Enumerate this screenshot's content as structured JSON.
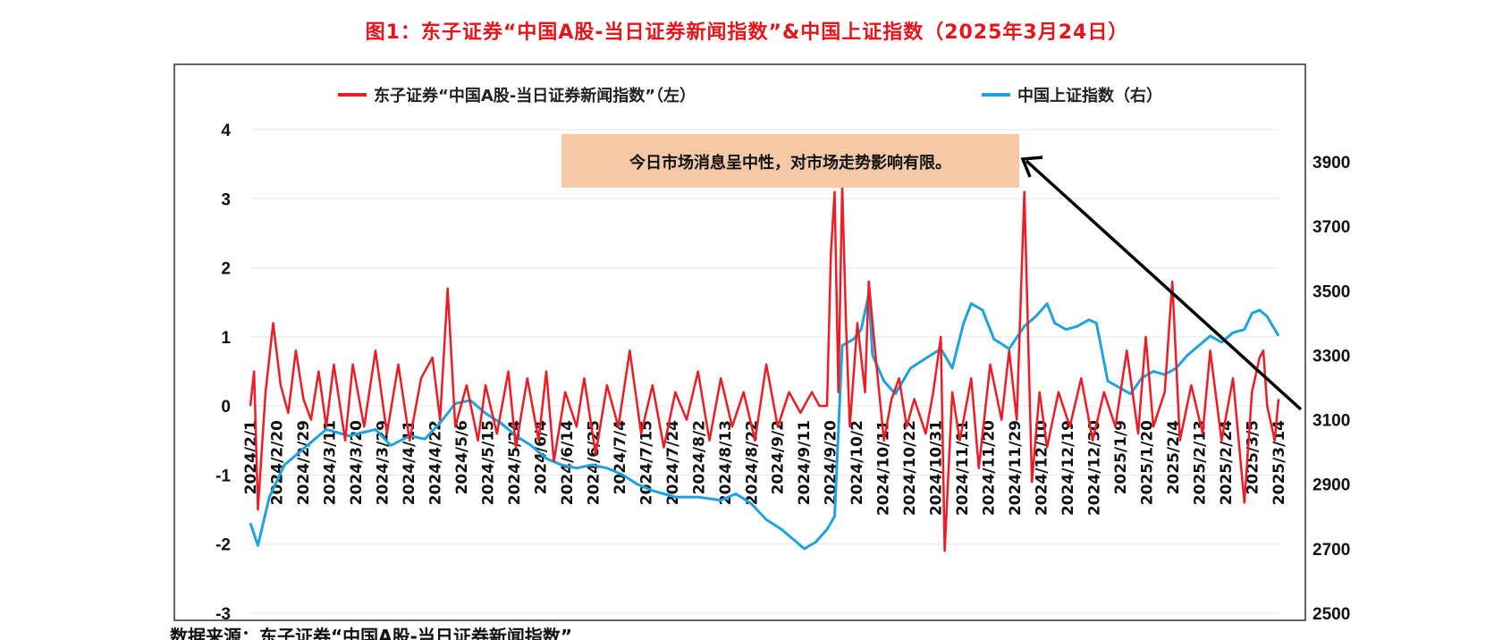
{
  "title": "图1：东子证券“中国A股-当日证券新闻指数”&中国上证指数（2025年3月24日）",
  "footer_text": "数据来源：东子证券“中国A股-当日证券新闻指数”",
  "colors": {
    "news": "#ee1c25",
    "sse": "#1fa3e0",
    "title": "#e8141c",
    "annotation_bg": "#f6c9a6"
  },
  "chart_data": {
    "type": "line",
    "legend": [
      "东子证券“中国A股-当日证券新闻指数”（左）",
      "中国上证指数（右）"
    ],
    "annotation": "今日市场消息呈中性，对市场走势影响有限。",
    "y_left": {
      "min": -3,
      "max": 4,
      "ticks": [
        -3,
        -2,
        -1,
        0,
        1,
        2,
        3,
        4
      ]
    },
    "y_right": {
      "min": 2500,
      "max": 4000,
      "ticks": [
        2500,
        2700,
        2900,
        3100,
        3300,
        3500,
        3700,
        3900
      ]
    },
    "x_ticks": [
      "2024/2/1",
      "2024/2/20",
      "2024/2/29",
      "2024/3/11",
      "2024/3/20",
      "2024/3/29",
      "2024/4/11",
      "2024/4/22",
      "2024/5/6",
      "2024/5/15",
      "2024/5/24",
      "2024/6/4",
      "2024/6/14",
      "2024/6/25",
      "2024/7/4",
      "2024/7/15",
      "2024/7/24",
      "2024/8/2",
      "2024/8/13",
      "2024/8/22",
      "2024/9/2",
      "2024/9/11",
      "2024/9/20",
      "2024/10/2",
      "2024/10/11",
      "2024/10/22",
      "2024/10/31",
      "2024/11/11",
      "2024/11/20",
      "2024/11/29",
      "2024/12/10",
      "2024/12/19",
      "2024/12/30",
      "2025/1/9",
      "2025/1/20",
      "2025/2/4",
      "2025/2/13",
      "2025/2/24",
      "2025/3/5",
      "2025/3/14"
    ],
    "series": [
      {
        "name": "东子证券“中国A股-当日证券新闻指数”（左）",
        "axis": "left",
        "keypoints": [
          [
            0,
            0
          ],
          [
            1,
            0.5
          ],
          [
            2,
            -1.5
          ],
          [
            4,
            0.2
          ],
          [
            6,
            1.2
          ],
          [
            8,
            0.3
          ],
          [
            10,
            -0.1
          ],
          [
            12,
            0.8
          ],
          [
            14,
            0.1
          ],
          [
            16,
            -0.2
          ],
          [
            18,
            0.5
          ],
          [
            20,
            -0.3
          ],
          [
            22,
            0.6
          ],
          [
            25,
            -0.5
          ],
          [
            27,
            0.6
          ],
          [
            30,
            -0.3
          ],
          [
            33,
            0.8
          ],
          [
            36,
            -0.4
          ],
          [
            39,
            0.6
          ],
          [
            42,
            -0.5
          ],
          [
            45,
            0.4
          ],
          [
            48,
            0.7
          ],
          [
            50,
            -0.2
          ],
          [
            52,
            1.7
          ],
          [
            54,
            -0.3
          ],
          [
            57,
            0.3
          ],
          [
            60,
            -0.5
          ],
          [
            62,
            0.3
          ],
          [
            65,
            -0.4
          ],
          [
            68,
            0.5
          ],
          [
            70,
            -0.6
          ],
          [
            73,
            0.4
          ],
          [
            76,
            -0.5
          ],
          [
            78,
            0.5
          ],
          [
            80,
            -0.8
          ],
          [
            83,
            0.2
          ],
          [
            86,
            -0.3
          ],
          [
            88,
            0.4
          ],
          [
            91,
            -0.7
          ],
          [
            94,
            0.3
          ],
          [
            97,
            -0.3
          ],
          [
            100,
            0.8
          ],
          [
            103,
            -0.4
          ],
          [
            106,
            0.3
          ],
          [
            109,
            -0.6
          ],
          [
            112,
            0.2
          ],
          [
            115,
            -0.2
          ],
          [
            118,
            0.5
          ],
          [
            121,
            -0.5
          ],
          [
            124,
            0.4
          ],
          [
            127,
            -0.3
          ],
          [
            130,
            0.2
          ],
          [
            133,
            -0.5
          ],
          [
            136,
            0.6
          ],
          [
            139,
            -0.3
          ],
          [
            142,
            0.2
          ],
          [
            145,
            -0.1
          ],
          [
            148,
            0.2
          ],
          [
            150,
            0
          ],
          [
            152,
            0
          ],
          [
            153,
            2.2
          ],
          [
            154,
            3.1
          ],
          [
            155,
            0.2
          ],
          [
            156,
            3.2
          ],
          [
            157,
            1.2
          ],
          [
            158,
            -0.3
          ],
          [
            160,
            1.2
          ],
          [
            162,
            0.2
          ],
          [
            163,
            1.8
          ],
          [
            165,
            0.6
          ],
          [
            167,
            -0.5
          ],
          [
            169,
            0.1
          ],
          [
            171,
            0.4
          ],
          [
            173,
            -0.3
          ],
          [
            175,
            0.1
          ],
          [
            178,
            -0.4
          ],
          [
            180,
            0.2
          ],
          [
            182,
            1
          ],
          [
            183,
            -2.1
          ],
          [
            185,
            0.2
          ],
          [
            187,
            -0.5
          ],
          [
            190,
            0.4
          ],
          [
            192,
            -0.9
          ],
          [
            195,
            0.6
          ],
          [
            198,
            -0.2
          ],
          [
            200,
            0.8
          ],
          [
            202,
            -0.2
          ],
          [
            204,
            3.1
          ],
          [
            206,
            -1.1
          ],
          [
            208,
            0.2
          ],
          [
            210,
            -0.6
          ],
          [
            213,
            0.2
          ],
          [
            216,
            -0.3
          ],
          [
            219,
            0.4
          ],
          [
            222,
            -0.5
          ],
          [
            225,
            0.2
          ],
          [
            228,
            -0.3
          ],
          [
            231,
            0.8
          ],
          [
            234,
            -0.4
          ],
          [
            236,
            1
          ],
          [
            238,
            -0.3
          ],
          [
            241,
            0.2
          ],
          [
            243,
            1.8
          ],
          [
            245,
            -0.5
          ],
          [
            248,
            0.3
          ],
          [
            251,
            -0.4
          ],
          [
            253,
            0.8
          ],
          [
            256,
            -0.5
          ],
          [
            259,
            0.4
          ],
          [
            262,
            -1.4
          ],
          [
            264,
            0.2
          ],
          [
            266,
            0.7
          ],
          [
            267,
            0.8
          ],
          [
            268,
            0
          ],
          [
            270,
            -0.5
          ],
          [
            271,
            0.1
          ]
        ]
      },
      {
        "name": "中国上证指数（右）",
        "axis": "right",
        "keypoints": [
          [
            0,
            2780
          ],
          [
            2,
            2710
          ],
          [
            5,
            2860
          ],
          [
            9,
            2960
          ],
          [
            14,
            3010
          ],
          [
            20,
            3070
          ],
          [
            26,
            3050
          ],
          [
            33,
            3070
          ],
          [
            37,
            3020
          ],
          [
            42,
            3050
          ],
          [
            46,
            3040
          ],
          [
            50,
            3090
          ],
          [
            54,
            3150
          ],
          [
            58,
            3160
          ],
          [
            62,
            3120
          ],
          [
            66,
            3090
          ],
          [
            70,
            3050
          ],
          [
            74,
            3020
          ],
          [
            78,
            2980
          ],
          [
            82,
            2960
          ],
          [
            86,
            2950
          ],
          [
            90,
            2960
          ],
          [
            94,
            2950
          ],
          [
            98,
            2930
          ],
          [
            102,
            2900
          ],
          [
            106,
            2880
          ],
          [
            112,
            2860
          ],
          [
            118,
            2860
          ],
          [
            124,
            2850
          ],
          [
            128,
            2870
          ],
          [
            132,
            2840
          ],
          [
            136,
            2790
          ],
          [
            140,
            2760
          ],
          [
            144,
            2720
          ],
          [
            146,
            2700
          ],
          [
            149,
            2720
          ],
          [
            152,
            2760
          ],
          [
            154,
            2800
          ],
          [
            156,
            3330
          ],
          [
            159,
            3350
          ],
          [
            161,
            3380
          ],
          [
            163,
            3490
          ],
          [
            164,
            3300
          ],
          [
            167,
            3220
          ],
          [
            170,
            3180
          ],
          [
            174,
            3260
          ],
          [
            178,
            3290
          ],
          [
            182,
            3320
          ],
          [
            185,
            3260
          ],
          [
            188,
            3400
          ],
          [
            190,
            3460
          ],
          [
            193,
            3440
          ],
          [
            196,
            3350
          ],
          [
            200,
            3320
          ],
          [
            204,
            3390
          ],
          [
            207,
            3420
          ],
          [
            210,
            3460
          ],
          [
            212,
            3400
          ],
          [
            215,
            3380
          ],
          [
            218,
            3390
          ],
          [
            221,
            3410
          ],
          [
            223,
            3400
          ],
          [
            226,
            3220
          ],
          [
            229,
            3200
          ],
          [
            232,
            3180
          ],
          [
            235,
            3230
          ],
          [
            238,
            3250
          ],
          [
            241,
            3240
          ],
          [
            244,
            3260
          ],
          [
            247,
            3300
          ],
          [
            250,
            3330
          ],
          [
            253,
            3360
          ],
          [
            256,
            3340
          ],
          [
            259,
            3370
          ],
          [
            262,
            3380
          ],
          [
            264,
            3430
          ],
          [
            266,
            3440
          ],
          [
            268,
            3420
          ],
          [
            271,
            3360
          ]
        ]
      }
    ]
  }
}
